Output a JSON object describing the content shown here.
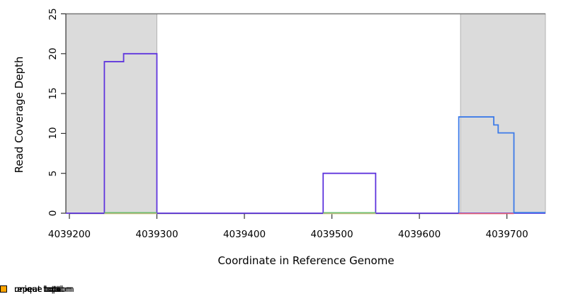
{
  "chart_data": {
    "type": "line",
    "xlabel": "Coordinate in Reference Genome",
    "ylabel": "Read Coverage Depth",
    "xlim": [
      4039196,
      4039744
    ],
    "ylim": [
      0,
      25
    ],
    "xticks": [
      4039200,
      4039300,
      4039400,
      4039500,
      4039600,
      4039700
    ],
    "yticks": [
      0,
      5,
      10,
      15,
      20,
      25
    ],
    "grid": false,
    "region_fill": "#dbdbdb",
    "region_border": "#b3b3b3",
    "shaded_regions": [
      {
        "name": "left-flank",
        "x0": 4039196,
        "x1": 4039300
      },
      {
        "name": "right-flank",
        "x0": 4039647,
        "x1": 4039744
      }
    ],
    "cutoff_line": {
      "y": 25,
      "color": "#777777"
    },
    "series": [
      {
        "name": "unique-bottom-purple-steps",
        "color": "#6036dd",
        "width": 1.8,
        "dy": 0,
        "points": [
          [
            4039196,
            0
          ],
          [
            4039240,
            0
          ],
          [
            4039240,
            19
          ],
          [
            4039262,
            19
          ],
          [
            4039262,
            20
          ],
          [
            4039300,
            20
          ],
          [
            4039300,
            0
          ],
          [
            4039490,
            0
          ],
          [
            4039490,
            5
          ],
          [
            4039550,
            5
          ],
          [
            4039550,
            0
          ],
          [
            4039744,
            0
          ]
        ]
      },
      {
        "name": "baseline-yellow-left",
        "color": "#e9e49c",
        "width": 1.2,
        "dy": 0.8,
        "points": [
          [
            4039240,
            0
          ],
          [
            4039300,
            0
          ]
        ]
      },
      {
        "name": "baseline-yellow-mid",
        "color": "#e9e49c",
        "width": 1.2,
        "dy": 0.8,
        "points": [
          [
            4039490,
            0
          ],
          [
            4039550,
            0
          ]
        ]
      },
      {
        "name": "baseline-green-left",
        "color": "#68c168",
        "width": 1.4,
        "dy": -0.8,
        "points": [
          [
            4039240,
            0
          ],
          [
            4039300,
            0
          ]
        ]
      },
      {
        "name": "baseline-green-mid",
        "color": "#68c168",
        "width": 1.4,
        "dy": -0.8,
        "points": [
          [
            4039490,
            0
          ],
          [
            4039550,
            0
          ]
        ]
      },
      {
        "name": "baseline-red-right",
        "color": "#ed6572",
        "width": 1.4,
        "dy": 0.5,
        "points": [
          [
            4039645,
            0
          ],
          [
            4039708,
            0
          ]
        ]
      },
      {
        "name": "unique-total-blue-steps",
        "color": "#3d7be8",
        "width": 1.8,
        "dy": -0.8,
        "points": [
          [
            4039645,
            0
          ],
          [
            4039645,
            12
          ],
          [
            4039685,
            12
          ],
          [
            4039685,
            11
          ],
          [
            4039690,
            11
          ],
          [
            4039690,
            10
          ],
          [
            4039708,
            10
          ],
          [
            4039708,
            0
          ],
          [
            4039744,
            0
          ]
        ]
      }
    ],
    "legend": [
      {
        "label": "unique total",
        "color": "#0000ff"
      },
      {
        "label": "unique top",
        "color": "#00ffff"
      },
      {
        "label": "unique bottom",
        "color": "#a020f0"
      },
      {
        "label": "repeat total",
        "color": "#ff0000"
      },
      {
        "label": "repeat top",
        "color": "#ffff00"
      },
      {
        "label": "repeat bottom",
        "color": "#ffa500"
      }
    ],
    "legend_position": "bottom"
  }
}
